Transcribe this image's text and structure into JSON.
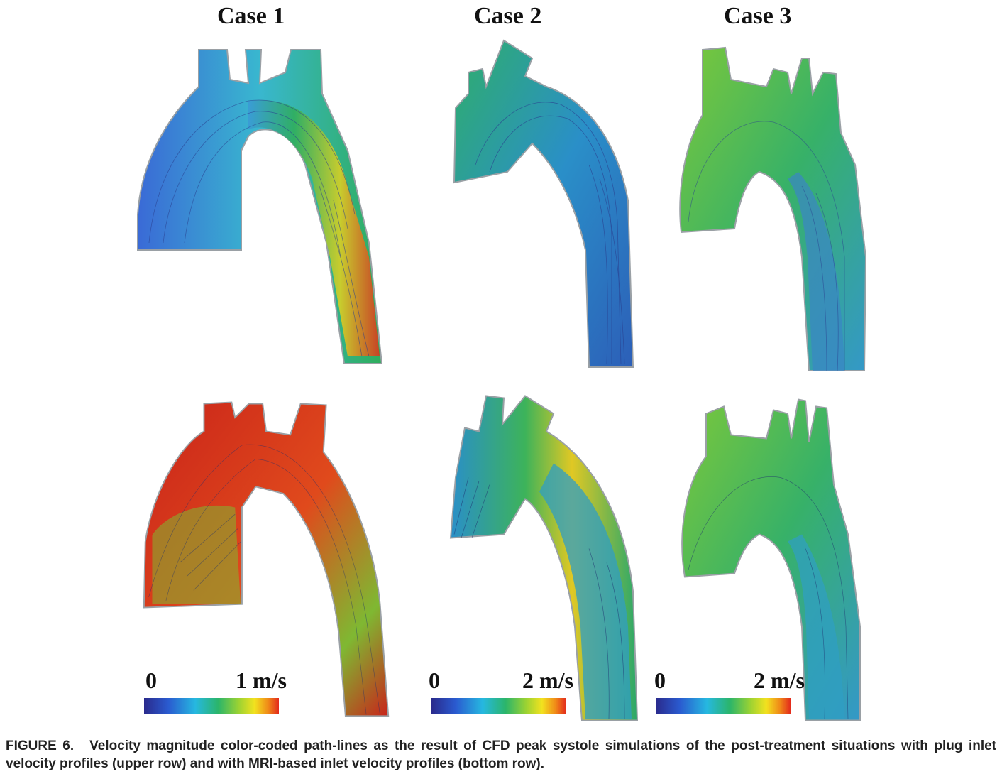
{
  "figure": {
    "columns": [
      {
        "title": "Case 1",
        "scale_min": "0",
        "scale_max": "1 m/s"
      },
      {
        "title": "Case 2",
        "scale_min": "0",
        "scale_max": "2 m/s"
      },
      {
        "title": "Case 3",
        "scale_min": "0",
        "scale_max": "2 m/s"
      }
    ],
    "colors": {
      "low": "#2a2a8c",
      "mid_low": "#26b8e0",
      "mid": "#2bb56a",
      "mid_high": "#f2e21f",
      "high": "#e32a1c",
      "vessel_wall": "#a9a9a9"
    }
  },
  "caption": {
    "label": "FIGURE 6.",
    "text": "Velocity magnitude color-coded path-lines as the result of CFD peak systole simulations of the post-treatment situations with plug inlet velocity profiles (upper row) and with MRI-based inlet velocity profiles (bottom row)."
  }
}
